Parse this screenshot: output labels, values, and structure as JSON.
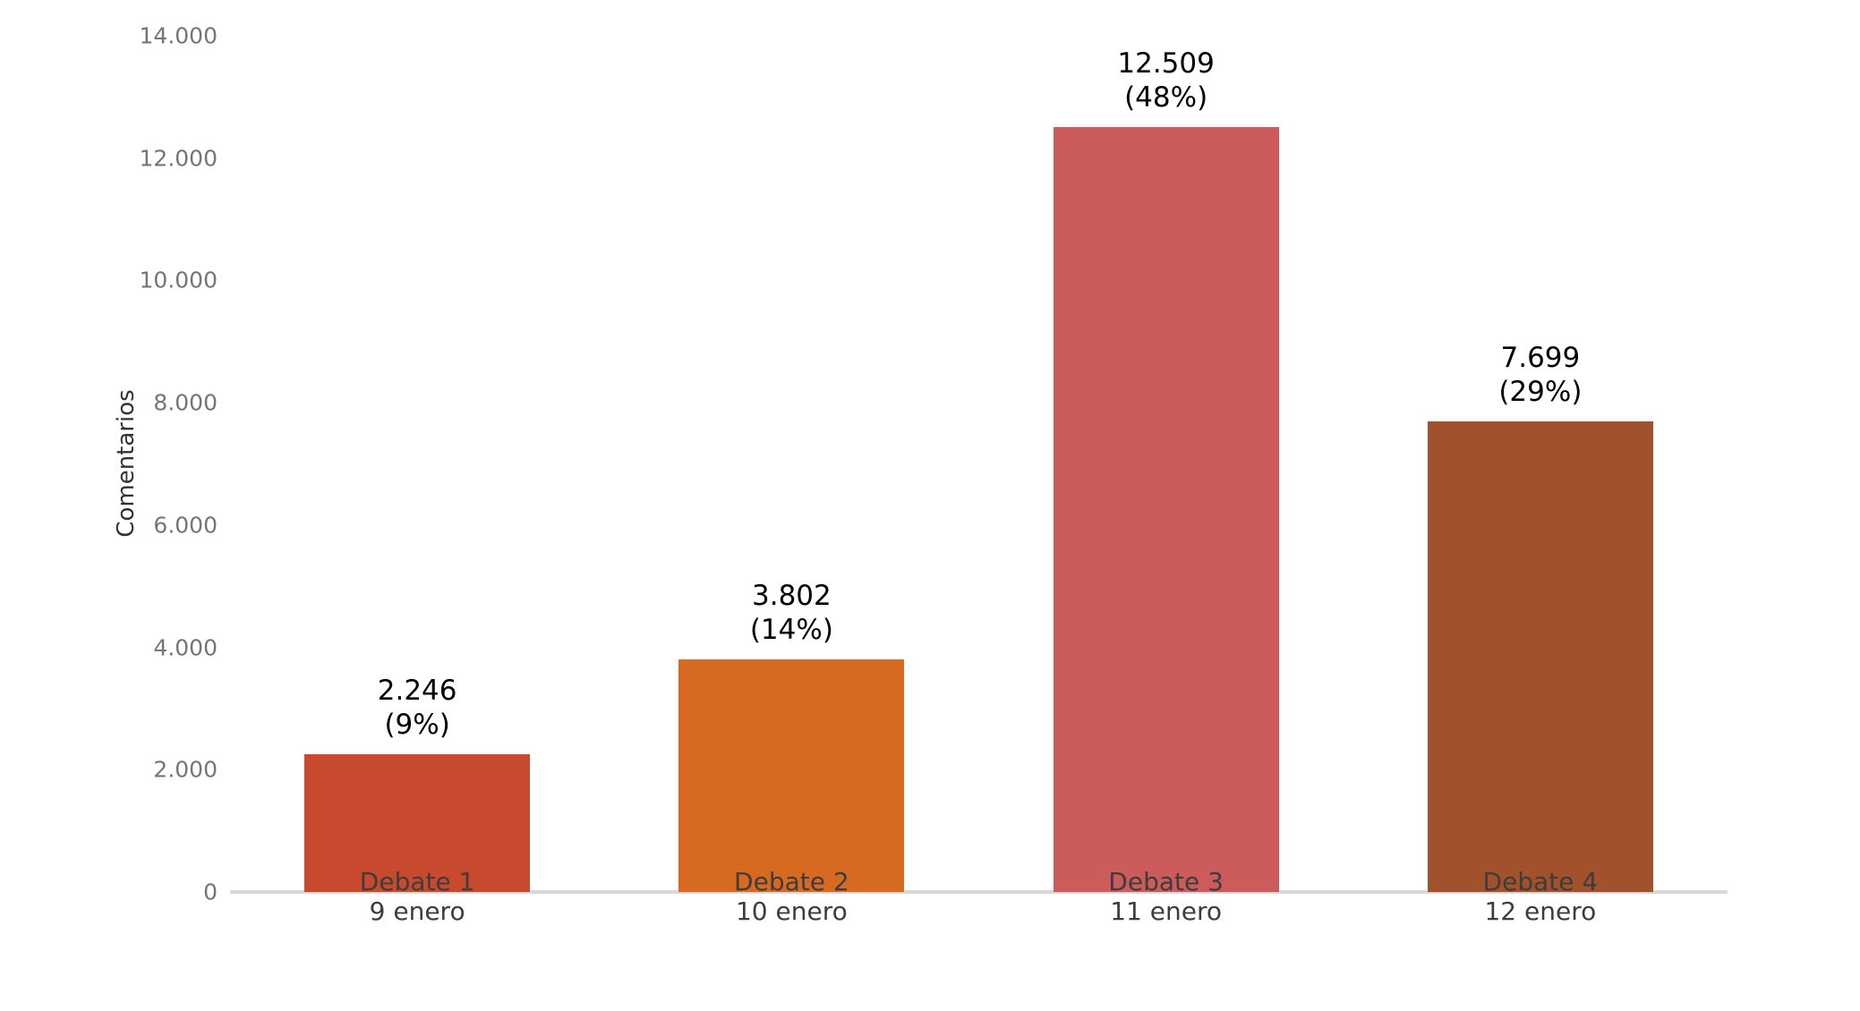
{
  "chart_data": {
    "type": "bar",
    "title": "",
    "xlabel": "",
    "ylabel": "Comentarios",
    "ylim": [
      0,
      14000
    ],
    "grid": false,
    "legend": "none",
    "ytick_values": [
      0,
      2000,
      4000,
      6000,
      8000,
      10000,
      12000,
      14000
    ],
    "ytick_labels": [
      "0",
      "2.000",
      "4.000",
      "6.000",
      "8.000",
      "10.000",
      "12.000",
      "14.000"
    ],
    "categories": [
      "Debate 1",
      "Debate 2",
      "Debate 3",
      "Debate 4"
    ],
    "category_dates": [
      "9 enero",
      "10 enero",
      "11 enero",
      "12 enero"
    ],
    "values": [
      2246,
      3802,
      12509,
      7699
    ],
    "bar_value_labels": [
      "2.246",
      "3.802",
      "12.509",
      "7.699"
    ],
    "bar_pct_labels": [
      "(9%)",
      "(14%)",
      "(48%)",
      "(29%)"
    ],
    "bar_colors": [
      "#c74a2f",
      "#d66a21",
      "#cc5c5c",
      "#a1522c"
    ]
  },
  "colors": {
    "background": "#ffffff",
    "axis_line": "#d8d8d8",
    "tick_text": "#757575",
    "xtick_text": "#3d3d3d",
    "value_text": "#000000",
    "ylabel_text": "#333333"
  }
}
